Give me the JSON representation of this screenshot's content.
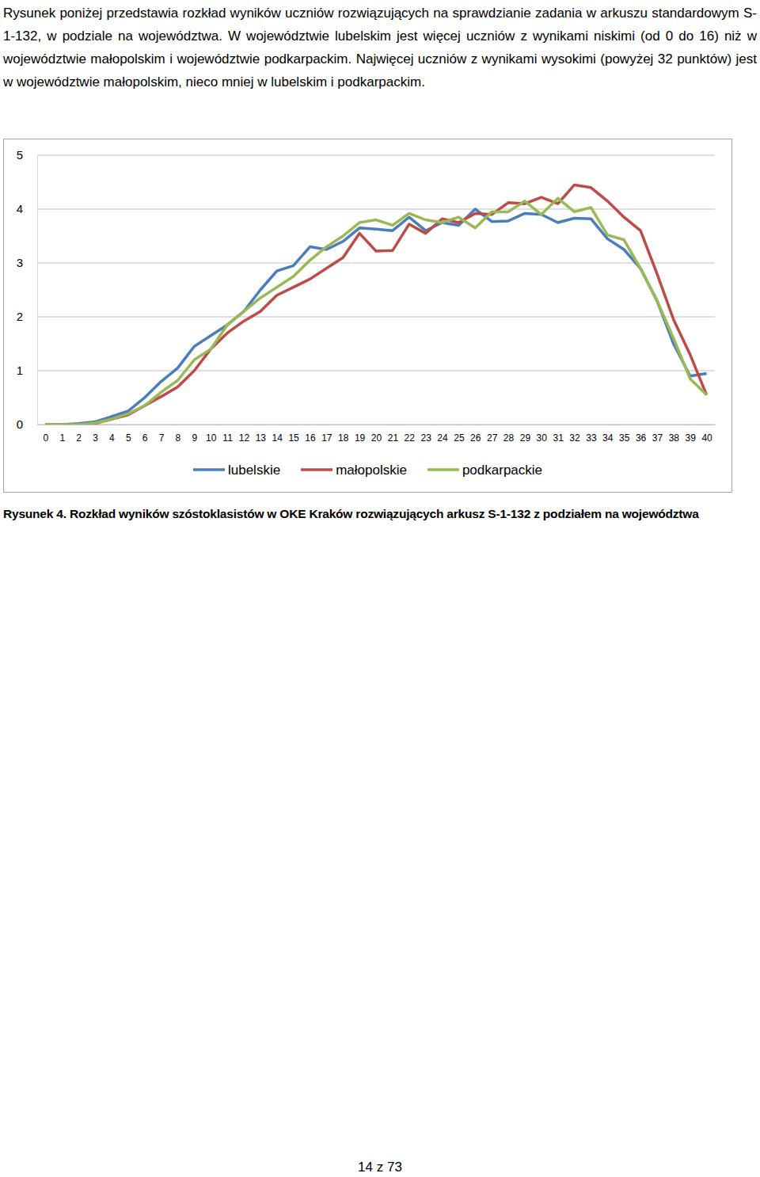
{
  "paragraph": "Rysunek poniżej przedstawia rozkład wyników uczniów rozwiązujących na sprawdzianie zadania w arkuszu standardowym S-1-132, w podziale na województwa. W województwie lubelskim jest więcej uczniów z wynikami niskimi (od 0 do 16) niż w województwie małopolskim i województwie podkarpackim. Najwięcej uczniów z wynikami wysokimi (powyżej 32 punktów) jest w województwie małopolskim, nieco mniej w lubelskim i podkarpackim.",
  "chart_data": {
    "type": "line",
    "categories": [
      "0",
      "1",
      "2",
      "3",
      "4",
      "5",
      "6",
      "7",
      "8",
      "9",
      "10",
      "11",
      "12",
      "13",
      "14",
      "15",
      "16",
      "17",
      "18",
      "19",
      "20",
      "21",
      "22",
      "23",
      "24",
      "25",
      "26",
      "27",
      "28",
      "29",
      "30",
      "31",
      "32",
      "33",
      "34",
      "35",
      "36",
      "37",
      "38",
      "39",
      "40"
    ],
    "ylim": [
      0,
      5
    ],
    "yticks": [
      0,
      1,
      2,
      3,
      4,
      5
    ],
    "grid": true,
    "legend": "bottom",
    "series": [
      {
        "name": "lubelskie",
        "color": "#4a7ebb",
        "values": [
          0,
          0,
          0.02,
          0.05,
          0.15,
          0.25,
          0.5,
          0.8,
          1.05,
          1.45,
          1.65,
          1.85,
          2.1,
          2.5,
          2.85,
          2.95,
          3.3,
          3.25,
          3.4,
          3.65,
          3.63,
          3.6,
          3.85,
          3.6,
          3.75,
          3.7,
          4.0,
          3.77,
          3.78,
          3.92,
          3.9,
          3.75,
          3.83,
          3.82,
          3.45,
          3.25,
          2.9,
          2.3,
          1.5,
          0.9,
          0.95
        ]
      },
      {
        "name": "małopolskie",
        "color": "#be4b48",
        "values": [
          0,
          0,
          0,
          0.02,
          0.1,
          0.18,
          0.35,
          0.52,
          0.7,
          1.0,
          1.4,
          1.7,
          1.92,
          2.1,
          2.4,
          2.55,
          2.7,
          2.9,
          3.1,
          3.55,
          3.22,
          3.23,
          3.72,
          3.55,
          3.82,
          3.75,
          3.92,
          3.9,
          4.12,
          4.1,
          4.22,
          4.1,
          4.45,
          4.4,
          4.15,
          3.85,
          3.6,
          2.8,
          1.95,
          1.3,
          0.55
        ]
      },
      {
        "name": "podkarpackie",
        "color": "#98b954",
        "values": [
          0,
          0,
          0,
          0.03,
          0.1,
          0.2,
          0.35,
          0.6,
          0.82,
          1.2,
          1.4,
          1.85,
          2.1,
          2.35,
          2.55,
          2.75,
          3.05,
          3.3,
          3.5,
          3.75,
          3.8,
          3.7,
          3.92,
          3.8,
          3.75,
          3.85,
          3.65,
          3.95,
          3.95,
          4.15,
          3.9,
          4.2,
          3.95,
          4.03,
          3.52,
          3.43,
          2.9,
          2.3,
          1.6,
          0.85,
          0.55
        ]
      }
    ]
  },
  "caption": "Rysunek 4. Rozkład wyników szóstoklasistów w OKE Kraków rozwiązujących arkusz S-1-132 z podziałem na województwa",
  "page_number": "14 z 73"
}
